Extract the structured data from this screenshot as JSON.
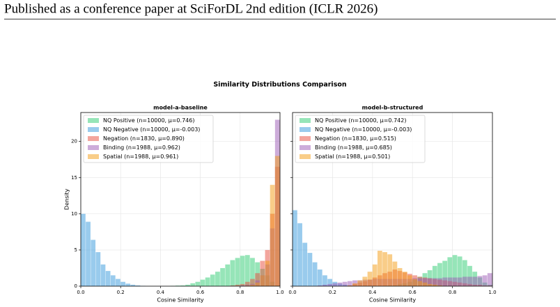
{
  "header": {
    "text": "Published as a conference paper at SciForDL 2nd edition (ICLR 2026)"
  },
  "figure_title": "Similarity Distributions Comparison",
  "chart_data": [
    {
      "type": "histogram",
      "title": "model-a-baseline",
      "xlabel": "Cosine Similarity",
      "ylabel": "Density",
      "xlim": [
        0,
        1
      ],
      "ylim": [
        0,
        24
      ],
      "xticks": [
        {
          "value": 0,
          "label": "0.0"
        },
        0.2,
        0.4,
        0.6,
        0.8,
        {
          "value": 1,
          "label": "1.0"
        }
      ],
      "yticks": [
        0,
        5,
        10,
        15,
        20
      ],
      "grid": true,
      "legend": "upper left",
      "bins": [
        0,
        0.025,
        0.05,
        0.075,
        0.1,
        0.125,
        0.15,
        0.175,
        0.2,
        0.225,
        0.25,
        0.275,
        0.3,
        0.325,
        0.35,
        0.375,
        0.4,
        0.425,
        0.45,
        0.475,
        0.5,
        0.525,
        0.55,
        0.575,
        0.6,
        0.625,
        0.65,
        0.675,
        0.7,
        0.725,
        0.75,
        0.775,
        0.8,
        0.825,
        0.85,
        0.875,
        0.9,
        0.925,
        0.95,
        0.975,
        1
      ],
      "series": [
        {
          "name": "NQ Positive (n=10000, μ=0.746)",
          "color": "#2ecc71",
          "values": [
            0,
            0,
            0,
            0,
            0,
            0,
            0,
            0,
            0,
            0,
            0,
            0,
            0,
            0,
            0,
            0,
            0,
            0,
            0.05,
            0.08,
            0.1,
            0.2,
            0.4,
            0.6,
            0.9,
            1.2,
            1.6,
            2.0,
            2.5,
            3.0,
            3.6,
            3.9,
            4.2,
            4.3,
            3.9,
            3.3,
            2.4,
            1.5,
            0.6,
            0.1
          ]
        },
        {
          "name": "NQ Negative (n=10000, μ=-0.003)",
          "color": "#3498db",
          "values": [
            10,
            8.9,
            6.4,
            4.7,
            3.0,
            2.1,
            1.5,
            1.0,
            0.6,
            0.35,
            0.2,
            0.1,
            0.05,
            0,
            0,
            0,
            0,
            0,
            0,
            0,
            0,
            0,
            0,
            0,
            0,
            0,
            0,
            0,
            0,
            0,
            0,
            0,
            0,
            0,
            0,
            0,
            0,
            0,
            0,
            0
          ]
        },
        {
          "name": "Negation (n=1830, μ=0.890)",
          "color": "#e74c3c",
          "values": [
            0,
            0,
            0,
            0,
            0,
            0,
            0,
            0,
            0,
            0,
            0,
            0,
            0,
            0,
            0,
            0,
            0,
            0,
            0,
            0,
            0,
            0,
            0,
            0,
            0,
            0,
            0,
            0,
            0,
            0,
            0.1,
            0.2,
            0.3,
            0.6,
            1.0,
            1.8,
            3.5,
            5.0,
            10,
            16.5
          ]
        },
        {
          "name": "Binding (n=1988, μ=0.962)",
          "color": "#9b59b6",
          "values": [
            0,
            0,
            0,
            0,
            0,
            0,
            0,
            0,
            0,
            0,
            0,
            0,
            0,
            0,
            0,
            0,
            0,
            0,
            0,
            0,
            0,
            0,
            0,
            0,
            0,
            0,
            0,
            0,
            0,
            0,
            0,
            0,
            0.1,
            0.2,
            0.3,
            0.8,
            1.5,
            3.0,
            8,
            23
          ]
        },
        {
          "name": "Spatial (n=1988, μ=0.961)",
          "color": "#f39c12",
          "values": [
            0,
            0,
            0,
            0,
            0,
            0,
            0,
            0,
            0,
            0,
            0,
            0,
            0,
            0,
            0,
            0,
            0,
            0,
            0,
            0,
            0,
            0,
            0,
            0,
            0,
            0,
            0,
            0,
            0,
            0,
            0,
            0,
            0,
            0.1,
            0.2,
            0.5,
            1.5,
            3.5,
            14,
            18
          ]
        }
      ]
    },
    {
      "type": "histogram",
      "title": "model-b-structured",
      "xlabel": "Cosine Similarity",
      "xlim": [
        0,
        1
      ],
      "ylim": [
        0,
        24
      ],
      "xticks": [
        {
          "value": 0,
          "label": "0.0"
        },
        0.2,
        0.4,
        0.6,
        0.8,
        {
          "value": 1,
          "label": "1.0"
        }
      ],
      "yticks": [
        0,
        5,
        10,
        15,
        20
      ],
      "sharey": true,
      "grid": true,
      "legend": "upper left",
      "bins": [
        0,
        0.025,
        0.05,
        0.075,
        0.1,
        0.125,
        0.15,
        0.175,
        0.2,
        0.225,
        0.25,
        0.275,
        0.3,
        0.325,
        0.35,
        0.375,
        0.4,
        0.425,
        0.45,
        0.475,
        0.5,
        0.525,
        0.55,
        0.575,
        0.6,
        0.625,
        0.65,
        0.675,
        0.7,
        0.725,
        0.75,
        0.775,
        0.8,
        0.825,
        0.85,
        0.875,
        0.9,
        0.925,
        0.95,
        0.975,
        1
      ],
      "series": [
        {
          "name": "NQ Positive (n=10000, μ=0.742)",
          "color": "#2ecc71",
          "values": [
            0,
            0,
            0,
            0,
            0,
            0,
            0,
            0,
            0,
            0,
            0,
            0,
            0,
            0,
            0,
            0,
            0,
            0,
            0.05,
            0.1,
            0.1,
            0.3,
            0.4,
            0.6,
            0.9,
            1.3,
            1.8,
            2.2,
            2.8,
            3.2,
            3.5,
            4.0,
            4.3,
            4.1,
            3.6,
            2.8,
            2.0,
            1.2,
            0.5,
            0.2
          ]
        },
        {
          "name": "NQ Negative (n=10000, μ=-0.003)",
          "color": "#3498db",
          "values": [
            10.5,
            8.7,
            6.0,
            4.6,
            3.3,
            2.3,
            1.5,
            1.0,
            0.6,
            0.35,
            0.2,
            0.1,
            0.05,
            0,
            0,
            0,
            0,
            0,
            0,
            0,
            0,
            0,
            0,
            0,
            0,
            0,
            0,
            0,
            0,
            0,
            0,
            0,
            0,
            0,
            0,
            0,
            0,
            0,
            0,
            0
          ]
        },
        {
          "name": "Negation (n=1830, μ=0.515)",
          "color": "#e74c3c",
          "values": [
            0,
            0,
            0,
            0,
            0,
            0,
            0,
            0,
            0,
            0,
            0.05,
            0.1,
            0.3,
            0.5,
            0.7,
            0.9,
            1.2,
            1.5,
            1.8,
            2.0,
            2.3,
            2.1,
            1.9,
            1.7,
            1.5,
            1.3,
            1.2,
            1.1,
            1.0,
            0.9,
            0.8,
            0.7,
            0.6,
            0.5,
            0.4,
            0.3,
            0.2,
            0.2,
            0.1,
            0.1
          ]
        },
        {
          "name": "Binding (n=1988, μ=0.685)",
          "color": "#9b59b6",
          "values": [
            0,
            0,
            0,
            0,
            0,
            0.1,
            0.2,
            0.3,
            0.4,
            0.5,
            0.6,
            0.7,
            0.8,
            0.8,
            0.9,
            0.9,
            1.0,
            1.0,
            1.0,
            1.0,
            1.0,
            1.0,
            1.0,
            1.0,
            1.1,
            1.1,
            1.1,
            1.1,
            1.1,
            1.1,
            1.2,
            1.2,
            1.2,
            1.2,
            1.3,
            1.3,
            1.3,
            1.4,
            1.5,
            1.8
          ]
        },
        {
          "name": "Spatial (n=1988, μ=0.501)",
          "color": "#f39c12",
          "values": [
            0,
            0,
            0,
            0,
            0,
            0,
            0,
            0,
            0,
            0,
            0,
            0.1,
            0.4,
            0.8,
            1.3,
            2.0,
            3.0,
            4.9,
            4.7,
            4.4,
            3.4,
            2.5,
            2.0,
            1.5,
            1.0,
            0.7,
            0.5,
            0.3,
            0.2,
            0.1,
            0,
            0,
            0,
            0,
            0,
            0,
            0,
            0,
            0,
            0
          ]
        }
      ]
    }
  ]
}
